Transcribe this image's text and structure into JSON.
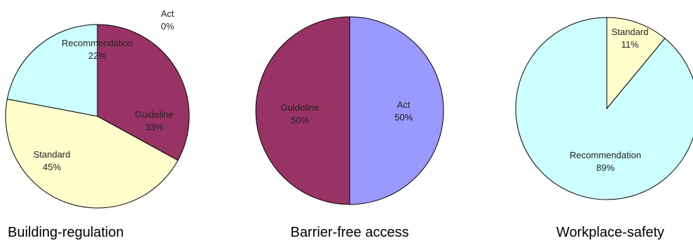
{
  "chart_data": [
    {
      "type": "pie",
      "title": "Building-regulation",
      "slices": [
        {
          "label": "Act",
          "value": 0,
          "percent_label": "0%",
          "color": "#9999FF"
        },
        {
          "label": "Guideline",
          "value": 33,
          "percent_label": "33%",
          "color": "#993366"
        },
        {
          "label": "Standard",
          "value": 45,
          "percent_label": "45%",
          "color": "#FFFFCC"
        },
        {
          "label": "Recommendation",
          "value": 22,
          "percent_label": "22%",
          "color": "#CCFFFF"
        }
      ]
    },
    {
      "type": "pie",
      "title": "Barrier-free access",
      "slices": [
        {
          "label": "Act",
          "value": 50,
          "percent_label": "50%",
          "color": "#9999FF"
        },
        {
          "label": "Guideline",
          "value": 50,
          "percent_label": "50%",
          "color": "#993366"
        }
      ]
    },
    {
      "type": "pie",
      "title": "Workplace-safety",
      "slices": [
        {
          "label": "Standard",
          "value": 11,
          "percent_label": "11%",
          "color": "#FFFFCC"
        },
        {
          "label": "Recommendation",
          "value": 89,
          "percent_label": "89%",
          "color": "#CCFFFF"
        }
      ]
    }
  ]
}
